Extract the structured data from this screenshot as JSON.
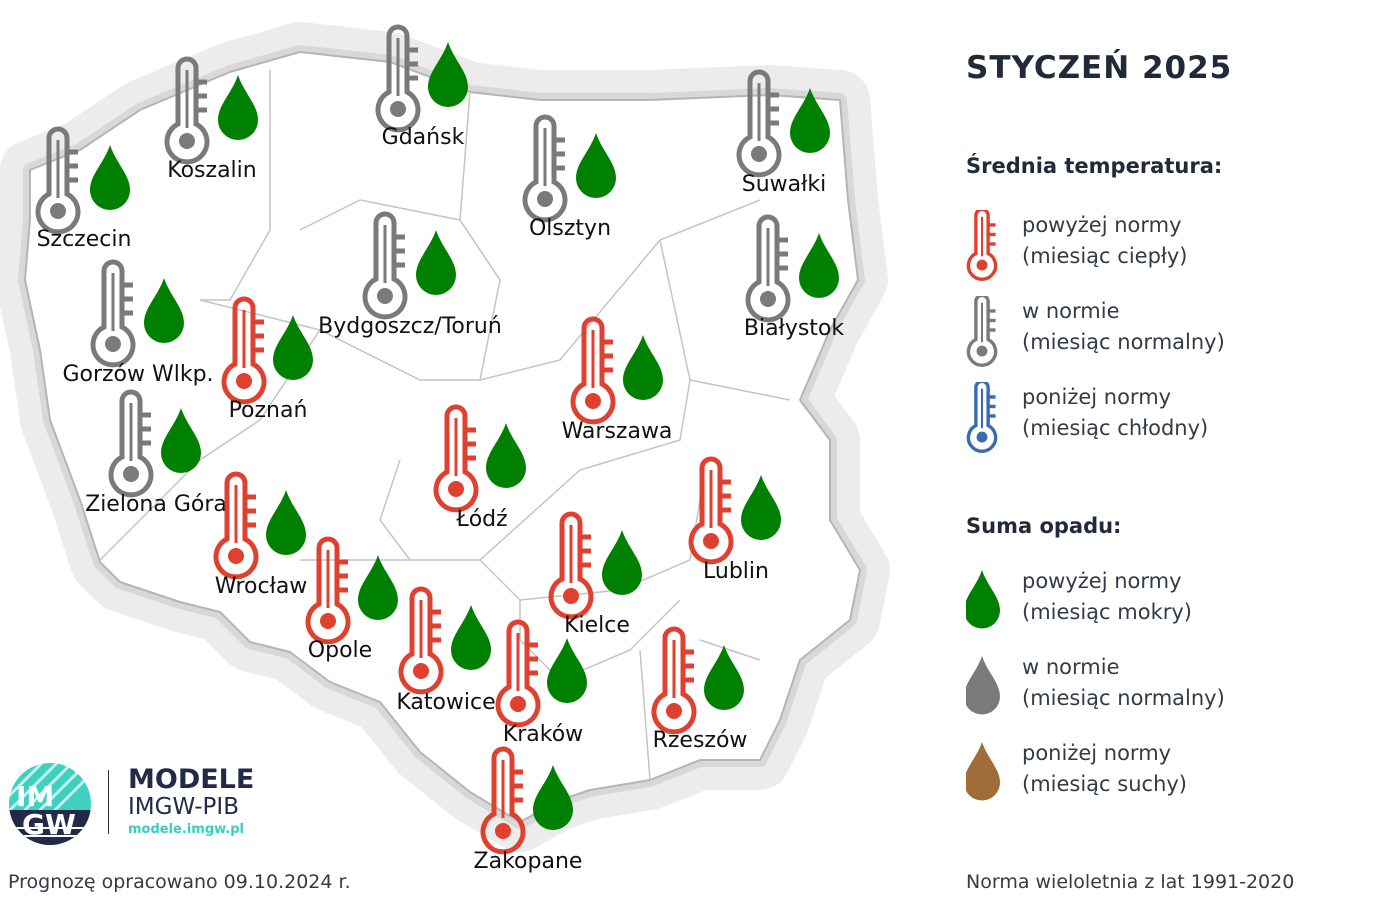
{
  "title": "STYCZEŃ 2025",
  "colors": {
    "temp_above": "#e04030",
    "temp_normal": "#7a7a7a",
    "temp_below": "#3a6ab0",
    "precip_above": "#008000",
    "precip_normal": "#7a7a7a",
    "precip_below": "#a06c38"
  },
  "legend": {
    "temperature_heading": "Średnia temperatura:",
    "temperature_items": [
      {
        "state": "above",
        "icon": "thermometer-icon",
        "line1": "powyżej normy",
        "line2": "(miesiąc ciepły)"
      },
      {
        "state": "normal",
        "icon": "thermometer-icon",
        "line1": "w normie",
        "line2": "(miesiąc normalny)"
      },
      {
        "state": "below",
        "icon": "thermometer-icon",
        "line1": "poniżej normy",
        "line2": "(miesiąc chłodny)"
      }
    ],
    "precip_heading": "Suma opadu:",
    "precip_items": [
      {
        "state": "above",
        "icon": "drop-icon",
        "line1": "powyżej normy",
        "line2": "(miesiąc mokry)"
      },
      {
        "state": "normal",
        "icon": "drop-icon",
        "line1": "w normie",
        "line2": "(miesiąc normalny)"
      },
      {
        "state": "below",
        "icon": "drop-icon",
        "line1": "poniżej normy",
        "line2": "(miesiąc suchy)"
      }
    ]
  },
  "cities": [
    {
      "name": "Szczecin",
      "temp": "normal",
      "precip": "above"
    },
    {
      "name": "Koszalin",
      "temp": "normal",
      "precip": "above"
    },
    {
      "name": "Gdańsk",
      "temp": "normal",
      "precip": "above"
    },
    {
      "name": "Olsztyn",
      "temp": "normal",
      "precip": "above"
    },
    {
      "name": "Suwałki",
      "temp": "normal",
      "precip": "above"
    },
    {
      "name": "Białystok",
      "temp": "normal",
      "precip": "above"
    },
    {
      "name": "Gorzów Wlkp.",
      "temp": "normal",
      "precip": "above"
    },
    {
      "name": "Bydgoszcz/Toruń",
      "temp": "normal",
      "precip": "above"
    },
    {
      "name": "Poznań",
      "temp": "above",
      "precip": "above"
    },
    {
      "name": "Warszawa",
      "temp": "above",
      "precip": "above"
    },
    {
      "name": "Zielona Góra",
      "temp": "normal",
      "precip": "above"
    },
    {
      "name": "Łódź",
      "temp": "above",
      "precip": "above"
    },
    {
      "name": "Wrocław",
      "temp": "above",
      "precip": "above"
    },
    {
      "name": "Lublin",
      "temp": "above",
      "precip": "above"
    },
    {
      "name": "Kielce",
      "temp": "above",
      "precip": "above"
    },
    {
      "name": "Opole",
      "temp": "above",
      "precip": "above"
    },
    {
      "name": "Katowice",
      "temp": "above",
      "precip": "above"
    },
    {
      "name": "Kraków",
      "temp": "above",
      "precip": "above"
    },
    {
      "name": "Rzeszów",
      "temp": "above",
      "precip": "above"
    },
    {
      "name": "Zakopane",
      "temp": "above",
      "precip": "above"
    }
  ],
  "logo": {
    "line1": "MODELE",
    "line2": "IMGW-PIB",
    "url": "modele.imgw.pl",
    "emblem": "IMGW"
  },
  "footer": {
    "forecast_date": "Prognozę opracowano 09.10.2024 r.",
    "norm_period": "Norma wieloletnia z lat 1991-2020"
  }
}
